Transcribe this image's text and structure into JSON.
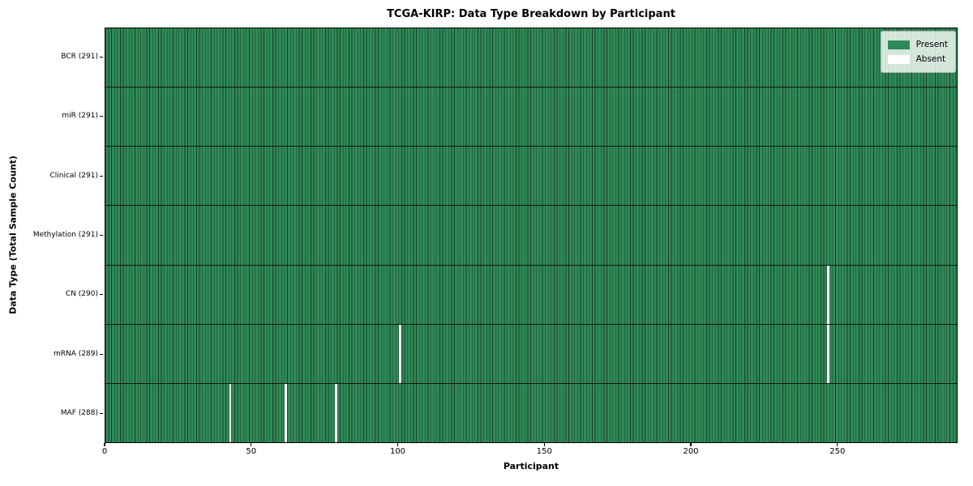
{
  "chart_data": {
    "type": "heatmap",
    "title": "TCGA-KIRP: Data Type Breakdown by Participant",
    "xlabel": "Participant",
    "ylabel": "Data Type (Total Sample Count)",
    "n_participants": 291,
    "xlim": [
      0,
      291
    ],
    "x_ticks": [
      0,
      50,
      100,
      150,
      200,
      250
    ],
    "grid": false,
    "legend": {
      "position": "upper-right",
      "entries": [
        {
          "label": "Present",
          "color": "#2e8b57"
        },
        {
          "label": "Absent",
          "color": "#ffffff"
        }
      ]
    },
    "rows": [
      {
        "label": "BCR (291)",
        "data_type": "BCR",
        "present_count": 291,
        "total": 291,
        "absent_participants": []
      },
      {
        "label": "miR (291)",
        "data_type": "miR",
        "present_count": 291,
        "total": 291,
        "absent_participants": []
      },
      {
        "label": "Clinical (291)",
        "data_type": "Clinical",
        "present_count": 291,
        "total": 291,
        "absent_participants": []
      },
      {
        "label": "Methylation (291)",
        "data_type": "Methylation",
        "present_count": 291,
        "total": 291,
        "absent_participants": []
      },
      {
        "label": "CN (290)",
        "data_type": "CN",
        "present_count": 290,
        "total": 291,
        "absent_participants": [
          246
        ]
      },
      {
        "label": "mRNA (289)",
        "data_type": "mRNA",
        "present_count": 289,
        "total": 291,
        "absent_participants": [
          100,
          246
        ]
      },
      {
        "label": "MAF (288)",
        "data_type": "MAF",
        "present_count": 288,
        "total": 291,
        "absent_participants": [
          42,
          61,
          78
        ]
      }
    ],
    "colors": {
      "present": "#2e8b57",
      "bar_edge": "#1d3b2a",
      "absent": "#ffffff",
      "row_divider": "#101810",
      "spine": "#000000",
      "text": "#000000",
      "legend_border": "#b3b3b3"
    }
  }
}
